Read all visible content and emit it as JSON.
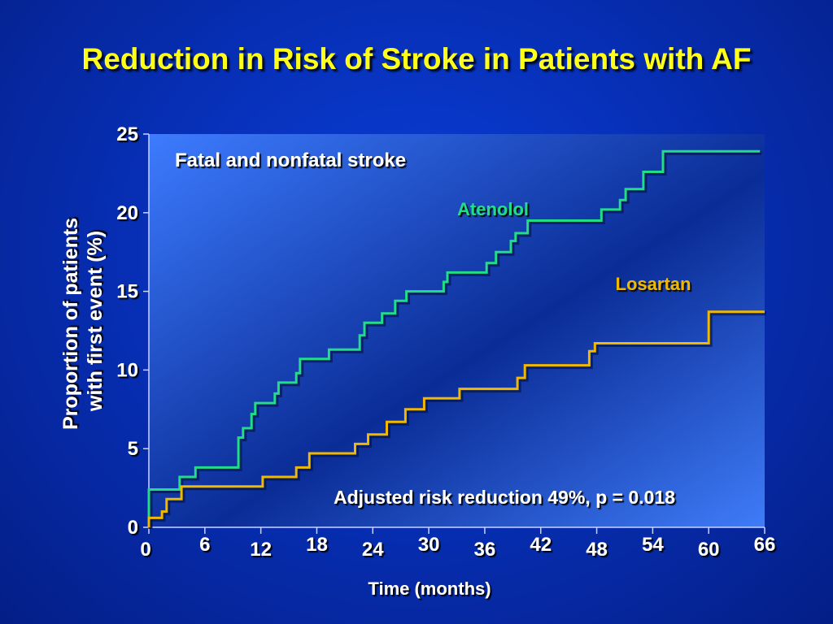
{
  "title": "Reduction in Risk of Stroke in Patients with AF",
  "chart_data": {
    "type": "line",
    "panel_label": "Fatal and nonfatal stroke",
    "xlabel": "Time (months)",
    "ylabel": "Proportion of patients with first event (%)",
    "xlim": [
      0,
      66
    ],
    "ylim": [
      0,
      25
    ],
    "x_ticks": [
      0,
      6,
      12,
      18,
      24,
      30,
      36,
      42,
      48,
      54,
      60,
      66
    ],
    "y_ticks": [
      0,
      5,
      10,
      15,
      20,
      25
    ],
    "annotation": "Adjusted risk reduction 49%, p = 0.018",
    "series": [
      {
        "name": "Atenolol",
        "color": "#22dd88",
        "points": [
          [
            0,
            0
          ],
          [
            0,
            2.4
          ],
          [
            3.3,
            2.4
          ],
          [
            3.3,
            3.2
          ],
          [
            5,
            3.2
          ],
          [
            5,
            3.8
          ],
          [
            9.6,
            3.8
          ],
          [
            9.6,
            5.7
          ],
          [
            10.1,
            5.7
          ],
          [
            10.1,
            6.3
          ],
          [
            11,
            6.3
          ],
          [
            11,
            7.2
          ],
          [
            11.4,
            7.2
          ],
          [
            11.4,
            7.9
          ],
          [
            13.5,
            7.9
          ],
          [
            13.5,
            8.5
          ],
          [
            13.9,
            8.5
          ],
          [
            13.9,
            9.2
          ],
          [
            15.8,
            9.2
          ],
          [
            15.8,
            9.8
          ],
          [
            16.2,
            9.8
          ],
          [
            16.2,
            10.7
          ],
          [
            19.3,
            10.7
          ],
          [
            19.3,
            11.3
          ],
          [
            22.6,
            11.3
          ],
          [
            22.6,
            12.2
          ],
          [
            23.1,
            12.2
          ],
          [
            23.1,
            13.0
          ],
          [
            25,
            13.0
          ],
          [
            25,
            13.6
          ],
          [
            26.4,
            13.6
          ],
          [
            26.4,
            14.4
          ],
          [
            27.6,
            14.4
          ],
          [
            27.6,
            15.0
          ],
          [
            31.6,
            15.0
          ],
          [
            31.6,
            15.6
          ],
          [
            32,
            15.6
          ],
          [
            32,
            16.2
          ],
          [
            36.2,
            16.2
          ],
          [
            36.2,
            16.8
          ],
          [
            37.2,
            16.8
          ],
          [
            37.2,
            17.5
          ],
          [
            38.8,
            17.5
          ],
          [
            38.8,
            18.2
          ],
          [
            39.3,
            18.2
          ],
          [
            39.3,
            18.7
          ],
          [
            40.6,
            18.7
          ],
          [
            40.6,
            19.5
          ],
          [
            48.5,
            19.5
          ],
          [
            48.5,
            20.2
          ],
          [
            50.5,
            20.2
          ],
          [
            50.5,
            20.8
          ],
          [
            51.1,
            20.8
          ],
          [
            51.1,
            21.5
          ],
          [
            53,
            21.5
          ],
          [
            53,
            22.6
          ],
          [
            55.1,
            22.6
          ],
          [
            55.1,
            23.9
          ],
          [
            65.5,
            23.9
          ]
        ]
      },
      {
        "name": "Losartan",
        "color": "#f0b800",
        "points": [
          [
            0,
            0
          ],
          [
            0,
            0.6
          ],
          [
            1.4,
            0.6
          ],
          [
            1.4,
            1.0
          ],
          [
            1.9,
            1.0
          ],
          [
            1.9,
            1.8
          ],
          [
            3.5,
            1.8
          ],
          [
            3.5,
            2.6
          ],
          [
            12.2,
            2.6
          ],
          [
            12.2,
            3.2
          ],
          [
            15.8,
            3.2
          ],
          [
            15.8,
            3.8
          ],
          [
            17.2,
            3.8
          ],
          [
            17.2,
            4.7
          ],
          [
            22.1,
            4.7
          ],
          [
            22.1,
            5.3
          ],
          [
            23.5,
            5.3
          ],
          [
            23.5,
            5.9
          ],
          [
            25.5,
            5.9
          ],
          [
            25.5,
            6.7
          ],
          [
            27.5,
            6.7
          ],
          [
            27.5,
            7.5
          ],
          [
            29.5,
            7.5
          ],
          [
            29.5,
            8.2
          ],
          [
            33.3,
            8.2
          ],
          [
            33.3,
            8.8
          ],
          [
            39.5,
            8.8
          ],
          [
            39.5,
            9.5
          ],
          [
            40.3,
            9.5
          ],
          [
            40.3,
            10.3
          ],
          [
            47.2,
            10.3
          ],
          [
            47.2,
            11.2
          ],
          [
            47.8,
            11.2
          ],
          [
            47.8,
            11.7
          ],
          [
            60,
            11.7
          ],
          [
            60,
            13.7
          ],
          [
            66,
            13.7
          ]
        ]
      }
    ]
  }
}
